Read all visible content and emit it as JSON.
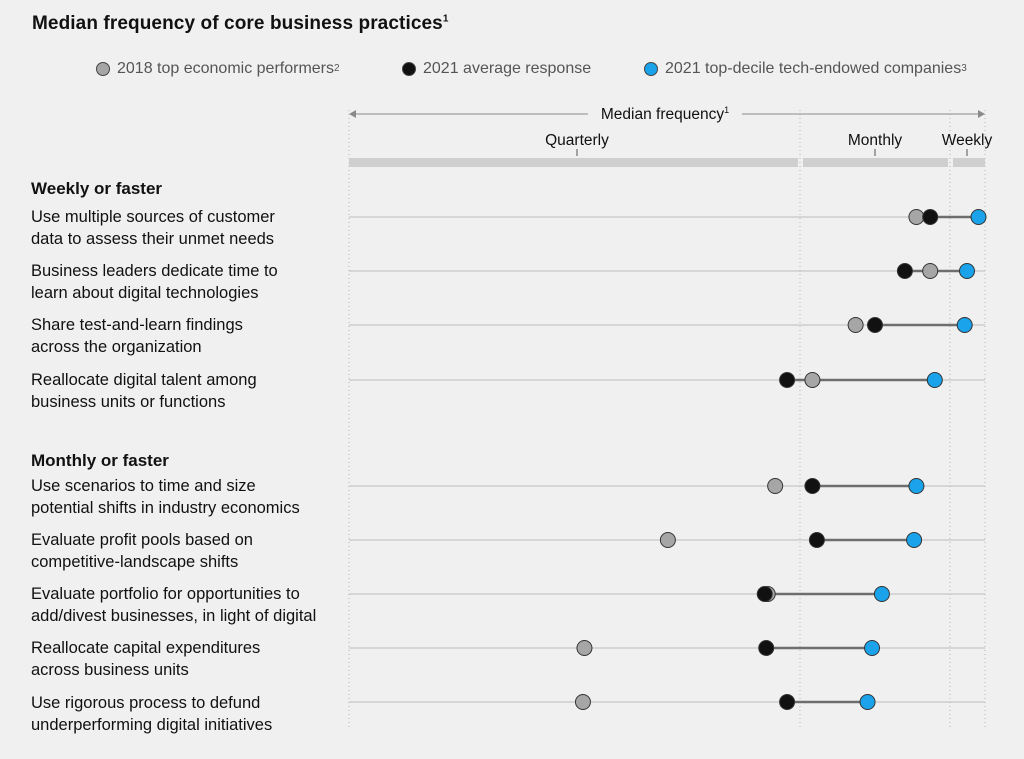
{
  "colors": {
    "2018": "#a6a6a6",
    "2021_avg": "#111111",
    "2021_top": "#1aa3ea"
  },
  "chart_data": {
    "type": "scatter",
    "title": "Median frequency of core business practices",
    "title_sup": "1",
    "axis_label": "Median frequency",
    "axis_label_sup": "1",
    "ticks": [
      {
        "label": "Quarterly",
        "value": 0.0
      },
      {
        "label": "Monthly",
        "value": 2.0
      },
      {
        "label": "Weekly",
        "value": 2.4
      }
    ],
    "xlim": [
      -1.5,
      2.5
    ],
    "legend": [
      {
        "key": "2018",
        "label": "2018 top economic performers",
        "sup": "2"
      },
      {
        "key": "2021_avg",
        "label": "2021 average response",
        "sup": ""
      },
      {
        "key": "2021_top",
        "label": "2021 top-decile tech-endowed companies",
        "sup": "3"
      }
    ],
    "groups": [
      {
        "title": "Weekly or faster",
        "rows": [
          {
            "label_lines": [
              "Use multiple sources of customer",
              "data to assess their unmet needs"
            ],
            "values": {
              "2018": 2.18,
              "2021_avg": 2.24,
              "2021_top": 2.45
            }
          },
          {
            "label_lines": [
              "Business leaders dedicate time to",
              "learn about digital technologies"
            ],
            "values": {
              "2018": 2.24,
              "2021_avg": 2.13,
              "2021_top": 2.4
            }
          },
          {
            "label_lines": [
              "Share test-and-learn findings",
              "across the organization"
            ],
            "values": {
              "2018": 1.87,
              "2021_avg": 2.0,
              "2021_top": 2.39
            }
          },
          {
            "label_lines": [
              "Reallocate digital talent among",
              "business units or functions"
            ],
            "values": {
              "2018": 1.58,
              "2021_avg": 1.41,
              "2021_top": 2.26
            }
          }
        ]
      },
      {
        "title": "Monthly or faster",
        "rows": [
          {
            "label_lines": [
              "Use scenarios to time and size",
              "potential shifts in industry economics"
            ],
            "values": {
              "2018": 1.33,
              "2021_avg": 1.58,
              "2021_top": 2.18
            }
          },
          {
            "label_lines": [
              "Evaluate profit pools based on",
              "competitive-landscape shifts"
            ],
            "values": {
              "2018": 0.61,
              "2021_avg": 1.61,
              "2021_top": 2.17
            }
          },
          {
            "label_lines": [
              "Evaluate portfolio for opportunities to",
              "add/divest businesses, in light of digital"
            ],
            "values": {
              "2018": 1.28,
              "2021_avg": 1.26,
              "2021_top": 2.03
            }
          },
          {
            "label_lines": [
              "Reallocate capital expenditures",
              "across business units"
            ],
            "values": {
              "2018": 0.05,
              "2021_avg": 1.27,
              "2021_top": 1.98
            }
          },
          {
            "label_lines": [
              "Use rigorous process to defund",
              "underperforming digital initiatives"
            ],
            "values": {
              "2018": 0.04,
              "2021_avg": 1.41,
              "2021_top": 1.95
            }
          }
        ]
      }
    ]
  }
}
